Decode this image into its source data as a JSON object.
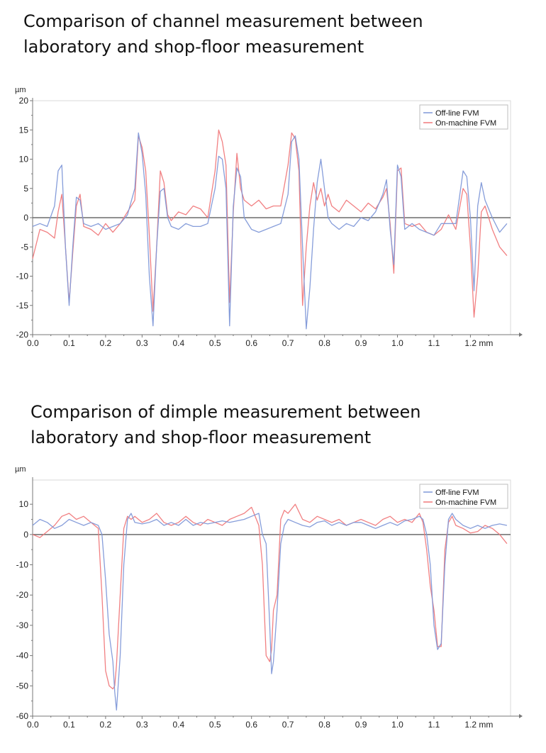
{
  "title_top": [
    "Comparison of channel measurement between",
    "laboratory and shop-floor measurement"
  ],
  "title_bottom": [
    "Comparison of dimple measurement between",
    "laboratory and shop-floor measurement"
  ],
  "colors": {
    "offline": "#7f98d8",
    "onmachine": "#f0797b",
    "zero_line": "#6b6b6b",
    "axis": "#777777",
    "grid": "#d9d9d9"
  },
  "chart_data": [
    {
      "type": "line",
      "title": "Comparison of channel measurement between laboratory and shop-floor measurement",
      "xlabel": "mm",
      "ylabel": "µm",
      "xlim": [
        0,
        1.31
      ],
      "ylim": [
        -20,
        20
      ],
      "x_ticks": [
        0.0,
        0.1,
        0.2,
        0.3,
        0.4,
        0.5,
        0.6,
        0.7,
        0.8,
        0.9,
        1.0,
        1.1,
        1.2
      ],
      "x_tick_labels": [
        "0.0",
        "0.1",
        "0.2",
        "0.3",
        "0.4",
        "0.5",
        "0.6",
        "0.7",
        "0.8",
        "0.9",
        "1.0",
        "1.1",
        "1.2 mm"
      ],
      "y_ticks": [
        -20,
        -15,
        -10,
        -5,
        0,
        5,
        10,
        15,
        20
      ],
      "y_tick_labels": [
        "-20",
        "-15",
        "-10",
        "-5",
        "0",
        "5",
        "10",
        "15",
        "20"
      ],
      "unit_label": "µm",
      "legend_position": "top-right",
      "series": [
        {
          "name": "Off-line FVM",
          "color": "#7f98d8",
          "x": [
            0.0,
            0.02,
            0.04,
            0.06,
            0.07,
            0.08,
            0.09,
            0.1,
            0.11,
            0.12,
            0.13,
            0.14,
            0.16,
            0.18,
            0.2,
            0.22,
            0.24,
            0.26,
            0.28,
            0.29,
            0.3,
            0.31,
            0.32,
            0.33,
            0.34,
            0.35,
            0.36,
            0.37,
            0.38,
            0.4,
            0.42,
            0.44,
            0.46,
            0.48,
            0.5,
            0.51,
            0.52,
            0.53,
            0.54,
            0.55,
            0.56,
            0.57,
            0.58,
            0.6,
            0.62,
            0.64,
            0.66,
            0.68,
            0.7,
            0.71,
            0.72,
            0.73,
            0.74,
            0.75,
            0.76,
            0.77,
            0.78,
            0.79,
            0.8,
            0.81,
            0.82,
            0.84,
            0.86,
            0.88,
            0.9,
            0.92,
            0.94,
            0.96,
            0.97,
            0.98,
            0.99,
            1.0,
            1.01,
            1.02,
            1.04,
            1.06,
            1.08,
            1.1,
            1.12,
            1.14,
            1.16,
            1.18,
            1.19,
            1.2,
            1.21,
            1.22,
            1.23,
            1.24,
            1.26,
            1.28,
            1.3
          ],
          "y": [
            -1.5,
            -1.0,
            -1.5,
            2.0,
            8.0,
            9.0,
            -5.0,
            -15.0,
            -5.0,
            3.5,
            3.0,
            -1.0,
            -1.5,
            -1.0,
            -2.0,
            -1.5,
            -1.0,
            0.5,
            5.0,
            14.5,
            11.0,
            4.0,
            -10.0,
            -18.5,
            -5.0,
            4.5,
            5.0,
            0.0,
            -1.5,
            -2.0,
            -1.0,
            -1.5,
            -1.5,
            -1.0,
            5.0,
            10.5,
            10.0,
            5.0,
            -18.5,
            2.0,
            8.5,
            7.0,
            0.0,
            -2.0,
            -2.5,
            -2.0,
            -1.5,
            -1.0,
            4.0,
            13.0,
            14.0,
            10.0,
            -5.0,
            -19.0,
            -12.0,
            -2.0,
            6.0,
            10.0,
            5.0,
            0.0,
            -1.0,
            -2.0,
            -1.0,
            -1.5,
            0.0,
            -0.5,
            1.0,
            4.0,
            6.5,
            -2.0,
            -8.0,
            9.0,
            7.0,
            -2.0,
            -1.0,
            -2.0,
            -2.5,
            -3.0,
            -1.0,
            -1.0,
            -1.0,
            8.0,
            7.0,
            0.0,
            -12.5,
            2.0,
            6.0,
            3.0,
            0.0,
            -2.5,
            -1.0
          ]
        },
        {
          "name": "On-machine FVM",
          "color": "#f0797b",
          "x": [
            0.0,
            0.02,
            0.04,
            0.06,
            0.07,
            0.08,
            0.09,
            0.1,
            0.11,
            0.12,
            0.13,
            0.14,
            0.16,
            0.18,
            0.2,
            0.22,
            0.24,
            0.26,
            0.28,
            0.29,
            0.3,
            0.31,
            0.32,
            0.33,
            0.34,
            0.35,
            0.36,
            0.37,
            0.38,
            0.4,
            0.42,
            0.44,
            0.46,
            0.48,
            0.5,
            0.51,
            0.52,
            0.53,
            0.54,
            0.55,
            0.56,
            0.57,
            0.58,
            0.6,
            0.62,
            0.64,
            0.66,
            0.68,
            0.7,
            0.71,
            0.72,
            0.73,
            0.74,
            0.75,
            0.76,
            0.77,
            0.78,
            0.79,
            0.8,
            0.81,
            0.82,
            0.84,
            0.86,
            0.88,
            0.9,
            0.92,
            0.94,
            0.96,
            0.97,
            0.98,
            0.99,
            1.0,
            1.01,
            1.02,
            1.04,
            1.06,
            1.08,
            1.1,
            1.12,
            1.14,
            1.16,
            1.18,
            1.19,
            1.2,
            1.21,
            1.22,
            1.23,
            1.24,
            1.26,
            1.28,
            1.3
          ],
          "y": [
            -7.0,
            -2.0,
            -2.5,
            -3.5,
            1.0,
            4.0,
            -5.0,
            -14.5,
            -6.0,
            2.0,
            4.0,
            -1.5,
            -2.0,
            -3.0,
            -1.0,
            -2.5,
            -1.0,
            1.0,
            3.0,
            14.0,
            12.0,
            8.0,
            -3.0,
            -16.0,
            -5.0,
            8.0,
            6.0,
            0.5,
            -0.5,
            1.0,
            0.5,
            2.0,
            1.5,
            0.0,
            8.0,
            15.0,
            13.0,
            9.0,
            -14.5,
            1.0,
            11.0,
            5.0,
            3.0,
            2.0,
            3.0,
            1.5,
            2.0,
            2.0,
            9.0,
            14.5,
            13.5,
            8.0,
            -15.0,
            -5.0,
            2.0,
            6.0,
            3.0,
            5.0,
            2.0,
            4.0,
            2.0,
            1.0,
            3.0,
            2.0,
            1.0,
            2.5,
            1.5,
            3.5,
            5.0,
            -1.0,
            -9.5,
            8.0,
            8.5,
            -1.0,
            -1.5,
            -1.0,
            -2.5,
            -3.0,
            -2.0,
            0.5,
            -2.0,
            5.0,
            4.0,
            -5.0,
            -17.0,
            -10.0,
            1.0,
            2.0,
            -2.0,
            -5.0,
            -6.5
          ]
        }
      ]
    },
    {
      "type": "line",
      "title": "Comparison of dimple measurement between laboratory and shop-floor measurement",
      "xlabel": "mm",
      "ylabel": "µm",
      "xlim": [
        0,
        1.31
      ],
      "ylim": [
        -60,
        18
      ],
      "x_ticks": [
        0.0,
        0.1,
        0.2,
        0.3,
        0.4,
        0.5,
        0.6,
        0.7,
        0.8,
        0.9,
        1.0,
        1.1,
        1.2
      ],
      "x_tick_labels": [
        "0.0",
        "0.1",
        "0.2",
        "0.3",
        "0.4",
        "0.5",
        "0.6",
        "0.7",
        "0.8",
        "0.9",
        "1.0",
        "1.1",
        "1.2 mm"
      ],
      "y_ticks": [
        -60,
        -50,
        -40,
        -30,
        -20,
        -10,
        0,
        10
      ],
      "y_tick_labels": [
        "-60",
        "-50",
        "-40",
        "-30",
        "-20",
        "-10",
        "0",
        "10"
      ],
      "unit_label": "µm",
      "legend_position": "top-right",
      "series": [
        {
          "name": "Off-line FVM",
          "color": "#7f98d8",
          "x": [
            0.0,
            0.02,
            0.04,
            0.06,
            0.08,
            0.1,
            0.12,
            0.14,
            0.16,
            0.18,
            0.19,
            0.2,
            0.21,
            0.22,
            0.225,
            0.23,
            0.24,
            0.25,
            0.26,
            0.27,
            0.28,
            0.3,
            0.32,
            0.34,
            0.36,
            0.38,
            0.4,
            0.42,
            0.44,
            0.46,
            0.48,
            0.5,
            0.52,
            0.54,
            0.56,
            0.58,
            0.6,
            0.62,
            0.63,
            0.64,
            0.65,
            0.655,
            0.66,
            0.67,
            0.68,
            0.69,
            0.7,
            0.72,
            0.74,
            0.76,
            0.78,
            0.8,
            0.82,
            0.84,
            0.86,
            0.88,
            0.9,
            0.92,
            0.94,
            0.96,
            0.98,
            1.0,
            1.02,
            1.04,
            1.06,
            1.07,
            1.08,
            1.09,
            1.1,
            1.11,
            1.12,
            1.13,
            1.14,
            1.15,
            1.16,
            1.18,
            1.2,
            1.22,
            1.24,
            1.26,
            1.28,
            1.3
          ],
          "y": [
            3.0,
            5.0,
            4.0,
            2.0,
            3.0,
            5.0,
            4.0,
            3.0,
            4.0,
            3.0,
            0.0,
            -15.0,
            -33.0,
            -42.0,
            -52.0,
            -58.0,
            -40.0,
            -10.0,
            5.0,
            7.0,
            4.0,
            3.5,
            4.0,
            5.0,
            3.0,
            4.0,
            3.0,
            5.0,
            3.0,
            4.0,
            3.5,
            4.0,
            4.5,
            4.0,
            4.5,
            5.0,
            6.0,
            7.0,
            0.0,
            -3.0,
            -30.0,
            -46.0,
            -42.0,
            -25.0,
            -3.0,
            3.0,
            5.0,
            4.0,
            3.0,
            2.5,
            4.0,
            4.5,
            3.0,
            4.0,
            3.0,
            4.0,
            4.0,
            3.0,
            2.0,
            3.0,
            4.0,
            3.0,
            4.5,
            5.0,
            6.0,
            5.0,
            0.0,
            -10.0,
            -30.0,
            -38.0,
            -36.0,
            -10.0,
            5.0,
            7.0,
            5.0,
            3.0,
            2.0,
            3.0,
            2.0,
            3.0,
            3.5,
            3.0
          ]
        },
        {
          "name": "On-machine FVM",
          "color": "#f0797b",
          "x": [
            0.0,
            0.02,
            0.04,
            0.06,
            0.08,
            0.1,
            0.12,
            0.14,
            0.16,
            0.18,
            0.19,
            0.2,
            0.21,
            0.22,
            0.225,
            0.23,
            0.24,
            0.25,
            0.26,
            0.27,
            0.28,
            0.3,
            0.32,
            0.34,
            0.36,
            0.38,
            0.4,
            0.42,
            0.44,
            0.46,
            0.48,
            0.5,
            0.52,
            0.54,
            0.56,
            0.58,
            0.6,
            0.62,
            0.63,
            0.64,
            0.65,
            0.655,
            0.66,
            0.67,
            0.68,
            0.69,
            0.7,
            0.72,
            0.74,
            0.76,
            0.78,
            0.8,
            0.82,
            0.84,
            0.86,
            0.88,
            0.9,
            0.92,
            0.94,
            0.96,
            0.98,
            1.0,
            1.02,
            1.04,
            1.06,
            1.07,
            1.08,
            1.09,
            1.1,
            1.11,
            1.12,
            1.13,
            1.14,
            1.15,
            1.16,
            1.18,
            1.2,
            1.22,
            1.24,
            1.26,
            1.28,
            1.3
          ],
          "y": [
            0.0,
            -1.0,
            1.0,
            3.0,
            6.0,
            7.0,
            5.0,
            6.0,
            4.0,
            2.0,
            -20.0,
            -45.0,
            -50.0,
            -51.0,
            -50.0,
            -43.0,
            -20.0,
            2.0,
            6.0,
            5.0,
            6.0,
            4.0,
            5.0,
            7.0,
            4.0,
            3.0,
            4.0,
            6.0,
            4.0,
            3.0,
            5.0,
            4.0,
            3.0,
            5.0,
            6.0,
            7.0,
            9.0,
            3.0,
            -10.0,
            -40.0,
            -42.0,
            -38.0,
            -25.0,
            -20.0,
            5.0,
            8.0,
            7.0,
            10.0,
            5.0,
            4.0,
            6.0,
            5.0,
            4.0,
            5.0,
            3.0,
            4.0,
            5.0,
            4.0,
            3.0,
            5.0,
            6.0,
            4.0,
            5.0,
            4.0,
            7.0,
            4.0,
            -5.0,
            -17.0,
            -25.0,
            -37.0,
            -37.0,
            -5.0,
            4.0,
            6.0,
            3.0,
            2.0,
            0.5,
            1.0,
            3.0,
            2.0,
            0.0,
            -3.0
          ]
        }
      ]
    }
  ]
}
